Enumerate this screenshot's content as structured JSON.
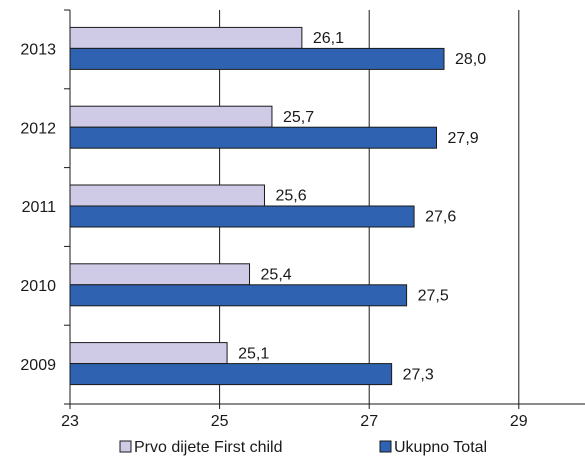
{
  "chart_data": {
    "type": "bar",
    "orientation": "horizontal",
    "categories": [
      "2013",
      "2012",
      "2011",
      "2010",
      "2009"
    ],
    "series": [
      {
        "name": "Prvo dijete First child",
        "values": [
          26.1,
          25.7,
          25.6,
          25.4,
          25.1
        ],
        "labels": [
          "26,1",
          "25,7",
          "25,6",
          "25,4",
          "25,1"
        ],
        "color": "#cfcbe6"
      },
      {
        "name": "Ukupno Total",
        "values": [
          28.0,
          27.9,
          27.6,
          27.5,
          27.3
        ],
        "labels": [
          "28,0",
          "27,9",
          "27,6",
          "27,5",
          "27,3"
        ],
        "color": "#2f63b1"
      }
    ],
    "xlim": [
      23,
      30
    ],
    "xticks": [
      23,
      25,
      27,
      29
    ],
    "grid": "vertical",
    "legend": "bottom",
    "title": "",
    "xlabel": "",
    "ylabel": ""
  }
}
